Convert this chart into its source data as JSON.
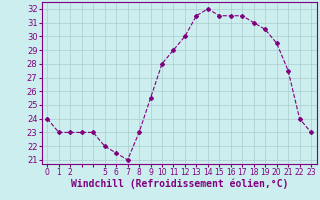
{
  "x": [
    0,
    1,
    2,
    3,
    4,
    5,
    6,
    7,
    8,
    9,
    10,
    11,
    12,
    13,
    14,
    15,
    16,
    17,
    18,
    19,
    20,
    21,
    22,
    23
  ],
  "y": [
    24,
    23,
    23,
    23,
    23,
    22,
    21.5,
    21,
    23,
    25.5,
    28,
    29,
    30,
    31.5,
    32,
    31.5,
    31.5,
    31.5,
    31,
    30.5,
    29.5,
    27.5,
    24,
    23
  ],
  "line_color": "#800080",
  "marker": "D",
  "marker_size": 2.0,
  "bg_color": "#cceeee",
  "grid_color": "#aacccc",
  "xlabel": "Windchill (Refroidissement éolien,°C)",
  "xlabel_color": "#800080",
  "xlabel_fontsize": 7,
  "ylabel_ticks": [
    21,
    22,
    23,
    24,
    25,
    26,
    27,
    28,
    29,
    30,
    31,
    32
  ],
  "ylim": [
    20.7,
    32.5
  ],
  "xlim": [
    -0.5,
    23.5
  ],
  "xtick_labels": [
    "0",
    "1",
    "2",
    "",
    "",
    "5",
    "6",
    "7",
    "8",
    "9",
    "10",
    "11",
    "12",
    "13",
    "14",
    "15",
    "16",
    "17",
    "18",
    "19",
    "20",
    "21",
    "22",
    "23"
  ],
  "tick_color": "#800080",
  "ytick_fontsize": 6.0,
  "xtick_fontsize": 5.5
}
